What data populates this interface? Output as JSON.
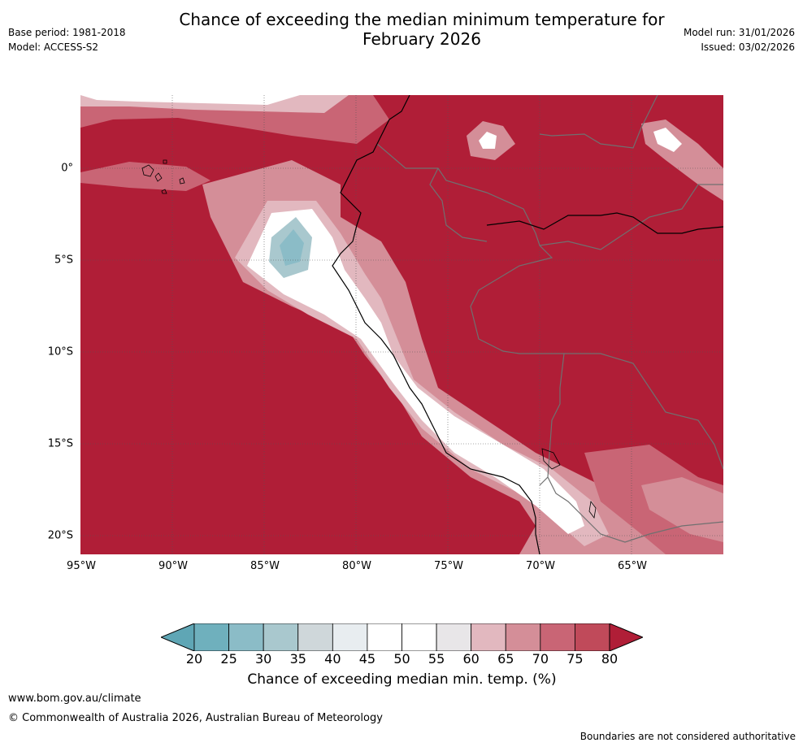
{
  "title_line1": "Chance of exceeding the median minimum temperature for",
  "title_line2": "February 2026",
  "base_period": "Base period: 1981-2018",
  "model": "Model: ACCESS-S2",
  "model_run": "Model run: 31/01/2026",
  "issued": "Issued: 03/02/2026",
  "lat_labels": [
    "0°",
    "5°S",
    "10°S",
    "15°S",
    "20°S"
  ],
  "lon_labels": [
    "95°W",
    "90°W",
    "85°W",
    "80°W",
    "75°W",
    "70°W",
    "65°W"
  ],
  "colorbar": {
    "ticks": [
      "20",
      "25",
      "30",
      "35",
      "40",
      "45",
      "50",
      "55",
      "60",
      "65",
      "70",
      "75",
      "80"
    ],
    "colors": [
      "#5fa6b5",
      "#6fb0bd",
      "#8bbcc7",
      "#a9c8ce",
      "#cfd7da",
      "#e8edf0",
      "#ffffff",
      "#ffffff",
      "#e8e6e8",
      "#e2b8bf",
      "#d48e98",
      "#c96575",
      "#c04a5a",
      "#b01e37"
    ],
    "label": "Chance of exceeding median min. temp. (%)"
  },
  "footer": {
    "url": "www.bom.gov.au/climate",
    "copyright": "© Commonwealth of Australia 2026, Australian Bureau of Meteorology",
    "disclaimer": "Boundaries are not considered authoritative"
  }
}
